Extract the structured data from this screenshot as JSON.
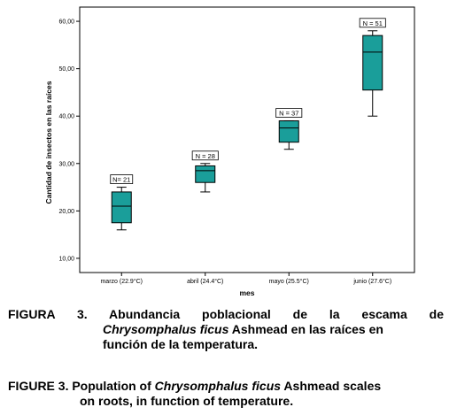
{
  "chart_data": {
    "type": "boxplot",
    "xlabel": "mes",
    "ylabel": "Cantidad de insectos en las raíces",
    "ylim": [
      7,
      63
    ],
    "yticks": [
      "10,00",
      "20,00",
      "30,00",
      "40,00",
      "50,00",
      "60,00"
    ],
    "ytick_values": [
      10,
      20,
      30,
      40,
      50,
      60
    ],
    "categories": [
      "marzo (22.9°C)",
      "abril (24.4°C)",
      "mayo (25.5°C)",
      "junio (27.6°C)"
    ],
    "boxes": [
      {
        "min": 16,
        "q1": 17.5,
        "median": 21,
        "q3": 24,
        "max": 25,
        "n_label": "N= 21"
      },
      {
        "min": 24,
        "q1": 26,
        "median": 28.5,
        "q3": 29.5,
        "max": 30,
        "n_label": "N = 28"
      },
      {
        "min": 33,
        "q1": 34.5,
        "median": 37.5,
        "q3": 39,
        "max": 39,
        "n_label": "N = 37"
      },
      {
        "min": 40,
        "q1": 45.5,
        "median": 53.5,
        "q3": 57,
        "max": 58,
        "n_label": "N = 51"
      }
    ],
    "box_color": "#1a9e9a"
  },
  "caption_es": {
    "label": "FIGURA 3. Abundancia poblacional de la escama de",
    "species": "Chrysomphalus ficus",
    "rest1": " Ashmead en las raíces en",
    "line3": "función de la temperatura."
  },
  "caption_en": {
    "label_pre": "FIGURE 3. Population of ",
    "species": "Chrysomphalus ficus",
    "rest1": " Ashmead scales",
    "line2": "on roots, in function of temperature."
  }
}
